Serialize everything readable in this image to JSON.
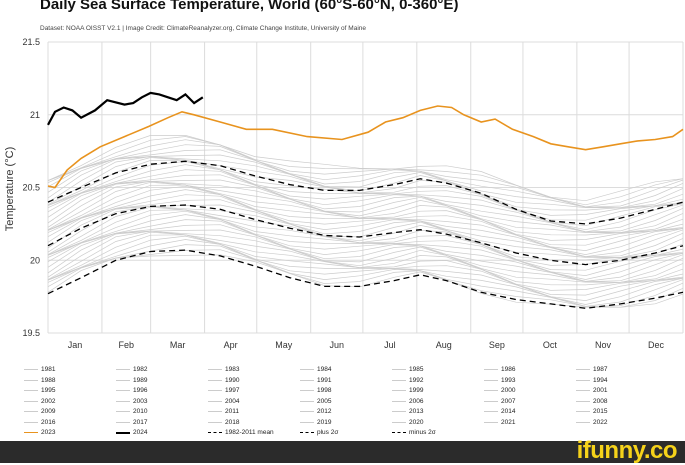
{
  "chart_data": {
    "type": "line",
    "title": "Daily Sea Surface Temperature, World (60°S-60°N, 0-360°E)",
    "subtitle": "Dataset: NOAA OISST V2.1 | Image Credit: ClimateReanalyzer.org, Climate Change Institute, University of Maine",
    "xlabel": "",
    "ylabel": "Temperature (°C)",
    "ylim": [
      19.5,
      21.5
    ],
    "yticks": [
      "21.5",
      "21",
      "20.5",
      "20",
      "19.5"
    ],
    "ytick_values": [
      21.5,
      21.0,
      20.5,
      20.0,
      19.5
    ],
    "months": [
      "Jan",
      "Feb",
      "Mar",
      "Apr",
      "May",
      "Jun",
      "Jul",
      "Aug",
      "Sep",
      "Oct",
      "Nov",
      "Dec"
    ],
    "x_unit": "day of year",
    "xlim": [
      1,
      366
    ],
    "series": [
      {
        "name": "2023",
        "color": "#e8931e",
        "x": [
          1,
          5,
          12,
          20,
          31,
          45,
          59,
          70,
          78,
          85,
          100,
          115,
          130,
          150,
          170,
          185,
          195,
          205,
          215,
          225,
          233,
          240,
          250,
          258,
          268,
          280,
          290,
          300,
          310,
          320,
          330,
          340,
          350,
          360,
          366
        ],
        "values": [
          20.51,
          20.5,
          20.62,
          20.7,
          20.78,
          20.85,
          20.92,
          20.98,
          21.02,
          21.0,
          20.95,
          20.9,
          20.9,
          20.85,
          20.83,
          20.88,
          20.95,
          20.98,
          21.03,
          21.06,
          21.05,
          21.0,
          20.95,
          20.97,
          20.9,
          20.85,
          20.8,
          20.78,
          20.76,
          20.78,
          20.8,
          20.82,
          20.83,
          20.85,
          20.9
        ]
      },
      {
        "name": "2024",
        "color": "#000000",
        "x": [
          1,
          5,
          10,
          15,
          20,
          28,
          35,
          45,
          50,
          55,
          60,
          65,
          70,
          75,
          80,
          85,
          90
        ],
        "values": [
          20.93,
          21.02,
          21.05,
          21.03,
          20.98,
          21.03,
          21.1,
          21.07,
          21.08,
          21.12,
          21.15,
          21.14,
          21.12,
          21.1,
          21.14,
          21.08,
          21.12
        ]
      },
      {
        "name": "1982-2011 mean",
        "color": "#000000",
        "style": "dashed",
        "x": [
          1,
          20,
          40,
          60,
          80,
          100,
          120,
          140,
          160,
          180,
          200,
          215,
          230,
          250,
          270,
          290,
          310,
          330,
          350,
          366
        ],
        "values": [
          20.1,
          20.22,
          20.32,
          20.37,
          20.38,
          20.35,
          20.28,
          20.22,
          20.17,
          20.16,
          20.19,
          20.21,
          20.18,
          20.12,
          20.05,
          20.0,
          19.97,
          20.0,
          20.05,
          20.1
        ]
      },
      {
        "name": "plus 2σ",
        "color": "#000000",
        "style": "dashed",
        "x": [
          1,
          20,
          40,
          60,
          80,
          100,
          120,
          140,
          160,
          180,
          200,
          215,
          230,
          250,
          270,
          290,
          310,
          330,
          350,
          366
        ],
        "values": [
          20.4,
          20.5,
          20.6,
          20.66,
          20.68,
          20.65,
          20.58,
          20.52,
          20.48,
          20.48,
          20.52,
          20.56,
          20.53,
          20.46,
          20.35,
          20.27,
          20.25,
          20.29,
          20.35,
          20.4
        ]
      },
      {
        "name": "minus 2σ",
        "color": "#000000",
        "style": "dashed",
        "x": [
          1,
          20,
          40,
          60,
          80,
          100,
          120,
          140,
          160,
          180,
          200,
          215,
          230,
          250,
          270,
          290,
          310,
          330,
          350,
          366
        ],
        "values": [
          19.77,
          19.88,
          20.0,
          20.06,
          20.07,
          20.03,
          19.96,
          19.88,
          19.82,
          19.82,
          19.86,
          19.9,
          19.86,
          19.78,
          19.73,
          19.7,
          19.67,
          19.7,
          19.74,
          19.78
        ]
      }
    ]
  },
  "legend": [
    {
      "label": "1981",
      "color": "#cccccc",
      "style": "solid"
    },
    {
      "label": "1982",
      "color": "#cccccc",
      "style": "solid"
    },
    {
      "label": "1983",
      "color": "#cccccc",
      "style": "solid"
    },
    {
      "label": "1984",
      "color": "#cccccc",
      "style": "solid"
    },
    {
      "label": "1985",
      "color": "#cccccc",
      "style": "solid"
    },
    {
      "label": "1986",
      "color": "#cccccc",
      "style": "solid"
    },
    {
      "label": "1987",
      "color": "#cccccc",
      "style": "solid"
    },
    {
      "label": "1988",
      "color": "#cccccc",
      "style": "solid"
    },
    {
      "label": "1989",
      "color": "#cccccc",
      "style": "solid"
    },
    {
      "label": "1990",
      "color": "#cccccc",
      "style": "solid"
    },
    {
      "label": "1991",
      "color": "#cccccc",
      "style": "solid"
    },
    {
      "label": "1992",
      "color": "#cccccc",
      "style": "solid"
    },
    {
      "label": "1993",
      "color": "#cccccc",
      "style": "solid"
    },
    {
      "label": "1994",
      "color": "#cccccc",
      "style": "solid"
    },
    {
      "label": "1995",
      "color": "#cccccc",
      "style": "solid"
    },
    {
      "label": "1996",
      "color": "#cccccc",
      "style": "solid"
    },
    {
      "label": "1997",
      "color": "#cccccc",
      "style": "solid"
    },
    {
      "label": "1998",
      "color": "#cccccc",
      "style": "solid"
    },
    {
      "label": "1999",
      "color": "#cccccc",
      "style": "solid"
    },
    {
      "label": "2000",
      "color": "#cccccc",
      "style": "solid"
    },
    {
      "label": "2001",
      "color": "#cccccc",
      "style": "solid"
    },
    {
      "label": "2002",
      "color": "#cccccc",
      "style": "solid"
    },
    {
      "label": "2003",
      "color": "#cccccc",
      "style": "solid"
    },
    {
      "label": "2004",
      "color": "#cccccc",
      "style": "solid"
    },
    {
      "label": "2005",
      "color": "#cccccc",
      "style": "solid"
    },
    {
      "label": "2006",
      "color": "#cccccc",
      "style": "solid"
    },
    {
      "label": "2007",
      "color": "#cccccc",
      "style": "solid"
    },
    {
      "label": "2008",
      "color": "#cccccc",
      "style": "solid"
    },
    {
      "label": "2009",
      "color": "#cccccc",
      "style": "solid"
    },
    {
      "label": "2010",
      "color": "#cccccc",
      "style": "solid"
    },
    {
      "label": "2011",
      "color": "#cccccc",
      "style": "solid"
    },
    {
      "label": "2012",
      "color": "#cccccc",
      "style": "solid"
    },
    {
      "label": "2013",
      "color": "#cccccc",
      "style": "solid"
    },
    {
      "label": "2014",
      "color": "#cccccc",
      "style": "solid"
    },
    {
      "label": "2015",
      "color": "#cccccc",
      "style": "solid"
    },
    {
      "label": "2016",
      "color": "#cccccc",
      "style": "solid"
    },
    {
      "label": "2017",
      "color": "#cccccc",
      "style": "solid"
    },
    {
      "label": "2018",
      "color": "#cccccc",
      "style": "solid"
    },
    {
      "label": "2019",
      "color": "#cccccc",
      "style": "solid"
    },
    {
      "label": "2020",
      "color": "#cccccc",
      "style": "solid"
    },
    {
      "label": "2021",
      "color": "#cccccc",
      "style": "solid"
    },
    {
      "label": "2022",
      "color": "#cccccc",
      "style": "solid"
    },
    {
      "label": "2023",
      "color": "#e8931e",
      "style": "solid"
    },
    {
      "label": "2024",
      "color": "#000000",
      "style": "solid"
    },
    {
      "label": "1982-2011 mean",
      "color": "#000000",
      "style": "dashed"
    },
    {
      "label": "plus 2σ",
      "color": "#000000",
      "style": "dashed"
    },
    {
      "label": "minus 2σ",
      "color": "#000000",
      "style": "dashed"
    }
  ],
  "background_years_color": "#cccccc",
  "watermark": "ifunny.co"
}
